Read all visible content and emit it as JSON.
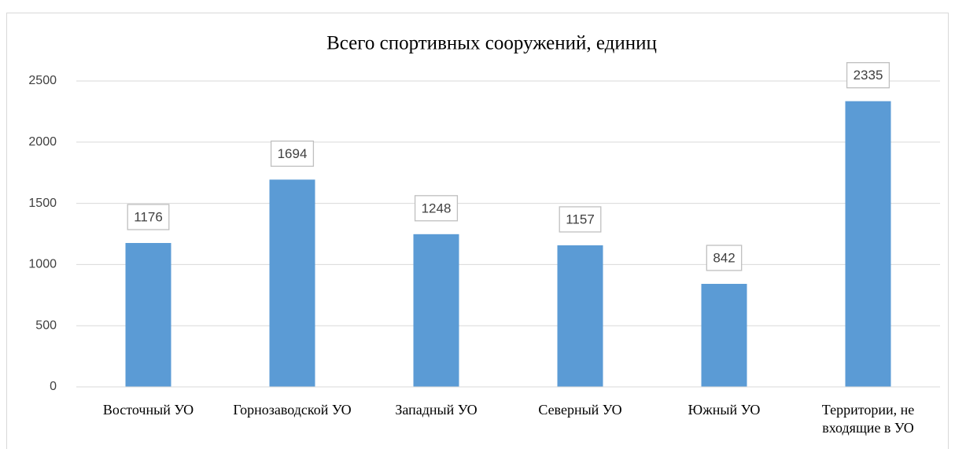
{
  "chart_data": {
    "type": "bar",
    "title": "Всего спортивных  сооружений, единиц",
    "categories": [
      "Восточный УО",
      "Горнозаводской УО",
      "Западный УО",
      "Северный УО",
      "Южный УО",
      "Территории, не входящие в УО"
    ],
    "values": [
      1176,
      1694,
      1248,
      1157,
      842,
      2335
    ],
    "color": "#5b9bd5",
    "ylim": [
      0,
      2500
    ],
    "yticks": [
      0,
      500,
      1000,
      1500,
      2000,
      2500
    ],
    "grid": true
  }
}
